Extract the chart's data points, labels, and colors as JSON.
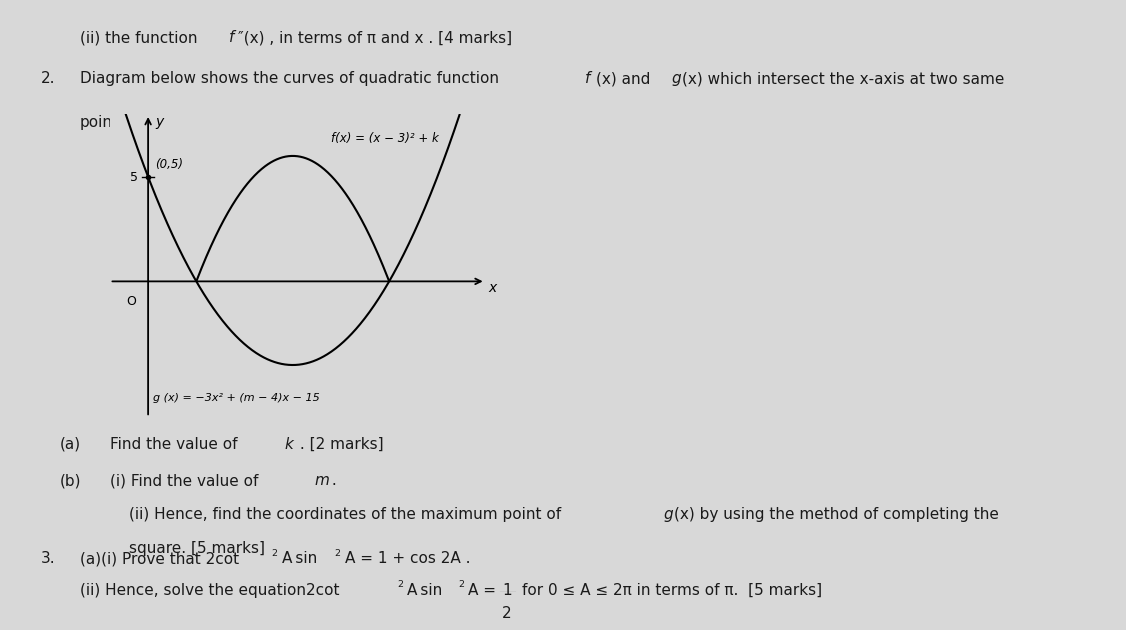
{
  "bg_color": "#d8d8d8",
  "text_color": "#1a1a1a",
  "line0_a": "(ii) the function ",
  "line0_b": "f",
  "line0_c": "″(x) , in terms of π and x . [4 marks]",
  "item2_line1_a": "2.",
  "item2_line1_b": "Diagram below shows the curves of quadratic function ",
  "item2_line1_c": "f",
  "item2_line1_d": "(x) and ",
  "item2_line1_e": "g",
  "item2_line1_f": "(x) which intersect the x-axis at two same",
  "item2_line2": "points.",
  "fx_label": "f(x) = (x − 3)² + k",
  "gx_label": "g (x) = −3x² + (m − 4)x − 15",
  "point_label": "(0,5)",
  "axis_x": "x",
  "axis_y": "y",
  "origin": "O",
  "tick5": "5",
  "sub_a_num": "(a)",
  "sub_a_text": "Find the value of ",
  "sub_a_k": "k",
  "sub_a_end": " . [2 marks]",
  "sub_b_num": "(b)",
  "sub_b_i_a": "(i) Find the value of ",
  "sub_b_i_m": "m",
  "sub_b_i_end": " .",
  "sub_b_ii_a": "(ii) Hence, find the coordinates of the maximum point of ",
  "sub_b_ii_g": "g",
  "sub_b_ii_b": "(x) by using the method of completing the",
  "sub_b_ii_c": "square. [5 marks]",
  "item3_num": "3.",
  "item3_a": "(a)(i) Prove that 2cot",
  "item3_b": "2",
  "item3_c": "A sin",
  "item3_d": "2",
  "item3_e": "A = 1 + cos 2A .",
  "item3_ii_a": "(ii) Hence, solve the equation2cot",
  "item3_ii_b": "2",
  "item3_ii_c": "A sin",
  "item3_ii_d": "2",
  "item3_ii_e": "A = ",
  "item3_ii_f": "1",
  "item3_ii_g": "2",
  "item3_ii_h": "for 0 ≤ A ≤ 2π in terms of π.  [5 marks]"
}
